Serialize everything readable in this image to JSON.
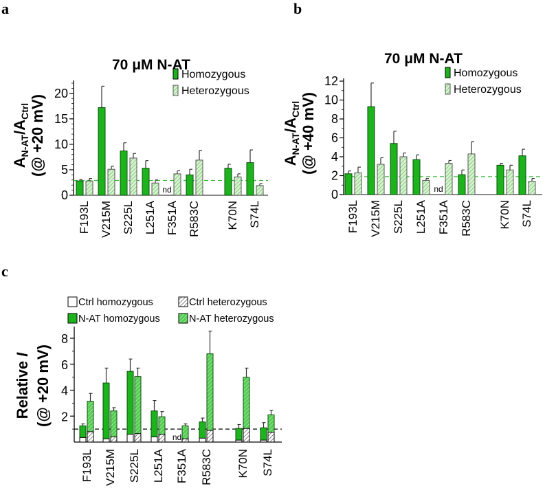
{
  "colors": {
    "homozygous": "#1db31d",
    "heterozygous_fill": "#d9f2d0",
    "heterozygous_hatch": "#6cc46c",
    "nat_het_fill": "#52cc52",
    "nat_het_hatch": "#b8ecb0",
    "ctrl_fill": "#ffffff",
    "ctrl_hatch": "#555555",
    "ref_line_ab": "#3db83d",
    "ref_line_c": "#000000",
    "axis": "#000000"
  },
  "chart_data": [
    {
      "panel": "a",
      "type": "bar",
      "title": "70 μM  N-AT",
      "ylabel_line1": "A",
      "ylabel_sub1": "N-AT",
      "ylabel_slash": "/A",
      "ylabel_sub2": "Ctrl",
      "ylabel_line2": "(@ +20 mV)",
      "xlabel": "",
      "ylim": [
        0,
        22
      ],
      "yticks": [
        0,
        5,
        10,
        15,
        20
      ],
      "categories": [
        "F193L",
        "V215M",
        "S225L",
        "L251A",
        "F351A",
        "R583C",
        "K70N",
        "S74L"
      ],
      "legend": [
        "Homozygous",
        "Heterozygous"
      ],
      "legend_position": "top-right",
      "reference_line": 2.9,
      "not_determined_label": "nd",
      "series": [
        {
          "name": "Homozygous",
          "values": [
            2.8,
            17.2,
            8.7,
            5.3,
            null,
            4.0,
            5.3,
            6.4
          ],
          "errors": [
            0.3,
            4.2,
            1.6,
            1.5,
            null,
            1.1,
            0.8,
            2.5
          ]
        },
        {
          "name": "Heterozygous",
          "values": [
            2.8,
            5.1,
            7.3,
            2.4,
            4.2,
            6.9,
            3.6,
            1.9
          ],
          "errors": [
            0.5,
            0.6,
            0.9,
            0.6,
            0.6,
            1.9,
            0.6,
            0.4
          ]
        }
      ]
    },
    {
      "panel": "b",
      "type": "bar",
      "title": "70 μM  N-AT",
      "ylabel_line1": "A",
      "ylabel_sub1": "N-AT",
      "ylabel_slash": "/A",
      "ylabel_sub2": "Ctrl",
      "ylabel_line2": "(@ +40 mV)",
      "xlabel": "",
      "ylim": [
        0,
        12
      ],
      "yticks": [
        0,
        2,
        4,
        6,
        8,
        10,
        12
      ],
      "categories": [
        "F193L",
        "V215M",
        "S225L",
        "L251A",
        "F351A",
        "R583C",
        "K70N",
        "S74L"
      ],
      "legend": [
        "Homozygous",
        "Heterozygous"
      ],
      "legend_position": "top-right",
      "reference_line": 1.9,
      "not_determined_label": "nd",
      "series": [
        {
          "name": "Homozygous",
          "values": [
            2.2,
            9.3,
            5.4,
            3.7,
            null,
            2.1,
            3.1,
            4.1
          ],
          "errors": [
            0.3,
            2.5,
            1.3,
            0.5,
            null,
            0.5,
            0.2,
            0.7
          ]
        },
        {
          "name": "Heterozygous",
          "values": [
            2.3,
            3.2,
            4.0,
            1.5,
            3.3,
            4.3,
            2.6,
            1.4
          ],
          "errors": [
            0.6,
            0.7,
            0.4,
            0.2,
            0.3,
            1.3,
            0.5,
            0.3
          ]
        }
      ]
    },
    {
      "panel": "c",
      "type": "bar",
      "title": "",
      "ylabel_line1": "Relative I",
      "ylabel_line2": "(@ +20 mV)",
      "xlabel": "",
      "ylim": [
        0,
        9
      ],
      "yticks": [
        2,
        4,
        6,
        8
      ],
      "categories": [
        "F193L",
        "V215M",
        "S225L",
        "L251A",
        "F351A",
        "R583C",
        "K70N",
        "S74L"
      ],
      "legend": [
        "Ctrl homozygous",
        "Ctrl heterozygous",
        "N-AT homozygous",
        "N-AT heterozygous"
      ],
      "legend_position": "top",
      "reference_line": 1.0,
      "not_determined_label": "nd",
      "series": [
        {
          "name": "Ctrl homozygous",
          "values": [
            0.35,
            0.25,
            0.6,
            0.4,
            null,
            0.3,
            0.15,
            0.15
          ]
        },
        {
          "name": "Ctrl heterozygous",
          "values": [
            0.8,
            0.4,
            0.65,
            0.6,
            0.25,
            0.9,
            1.05,
            0.75
          ]
        },
        {
          "name": "N-AT homozygous",
          "values": [
            1.25,
            4.55,
            5.45,
            2.4,
            null,
            1.55,
            1.05,
            1.1
          ],
          "errors": [
            0.15,
            1.15,
            0.95,
            0.8,
            null,
            0.3,
            0.3,
            0.4
          ]
        },
        {
          "name": "N-AT heterozygous",
          "values": [
            3.15,
            2.4,
            5.05,
            1.95,
            1.25,
            6.8,
            5.0,
            2.1
          ],
          "errors": [
            0.6,
            0.25,
            0.65,
            0.4,
            0.15,
            1.75,
            0.7,
            0.35
          ]
        }
      ]
    }
  ],
  "panel_labels": [
    "a",
    "b",
    "c"
  ]
}
